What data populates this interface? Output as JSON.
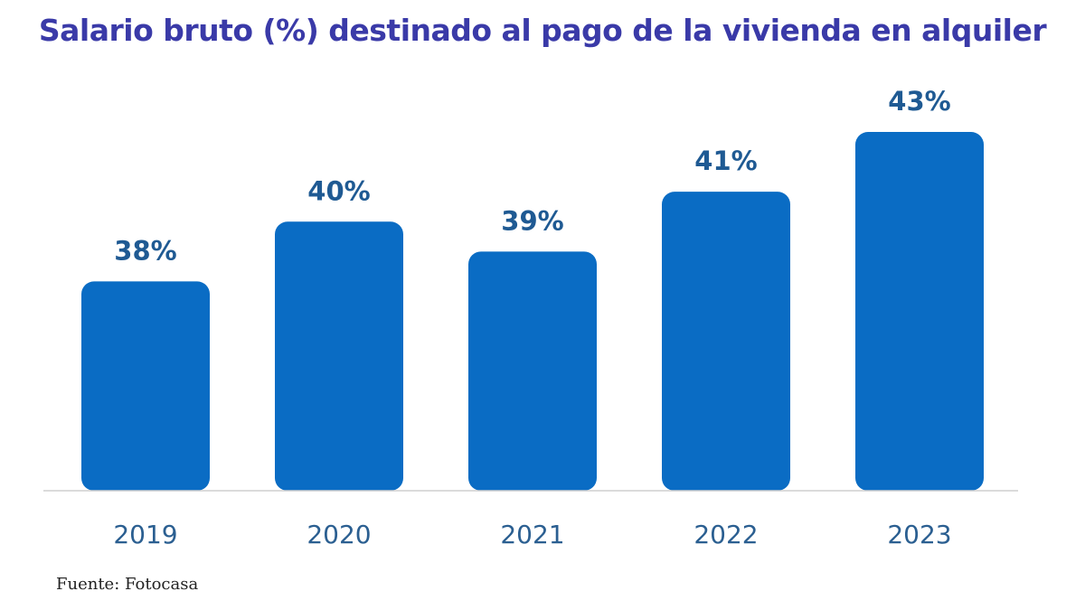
{
  "chart_data": {
    "type": "bar",
    "title": "Salario bruto (%) destinado al pago de la vivienda en alquiler",
    "categories": [
      "2019",
      "2020",
      "2021",
      "2022",
      "2023"
    ],
    "values": [
      38,
      40,
      39,
      41,
      43
    ],
    "value_labels": [
      "38%",
      "40%",
      "39%",
      "41%",
      "43%"
    ],
    "unit": "%",
    "ylim": [
      31,
      43
    ],
    "grid": false,
    "legend": "none",
    "bar_color": "#0a6cc4",
    "label_color": "#1f5a93",
    "tick_color": "#2b5f91",
    "axis_color": "#cfcfcf"
  },
  "source": "Fuente: Fotocasa"
}
